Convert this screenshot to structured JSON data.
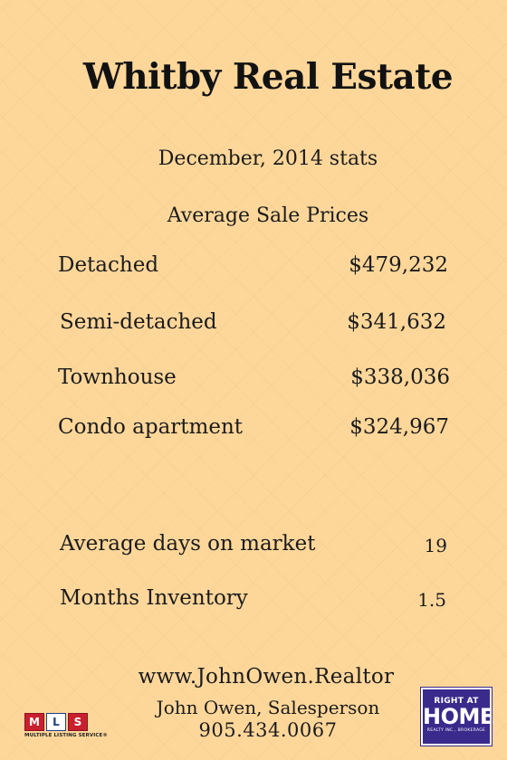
{
  "title": "Whitby Real Estate",
  "subtitle": "December, 2014 stats",
  "section_heading": "Average Sale Prices",
  "prices": [
    {
      "label": "Detached",
      "value": "$479,232"
    },
    {
      "label": "Semi-detached",
      "value": "$341,632"
    },
    {
      "label": "Townhouse",
      "value": "$338,036"
    },
    {
      "label": "Condo apartment",
      "value": "$324,967"
    }
  ],
  "stats": [
    {
      "label": "Average days on market",
      "value": "19"
    },
    {
      "label": "Months Inventory",
      "value": "1.5"
    }
  ],
  "footer": {
    "website": "www.JohnOwen.Realtor",
    "agent": "John Owen, Salesperson",
    "phone": "905.434.0067"
  },
  "logos": {
    "mls": {
      "letters": [
        "M",
        "L",
        "S"
      ],
      "caption": "MULTIPLE LISTING SERVICE®",
      "color": "#c8202e"
    },
    "right_at_home": {
      "top": "RIGHT AT",
      "main": "HOME",
      "sub": "REALTY INC., BROKERAGE",
      "color": "#3a2a8c"
    }
  },
  "colors": {
    "background": "#fdd79a",
    "text": "#1b1b1b"
  }
}
